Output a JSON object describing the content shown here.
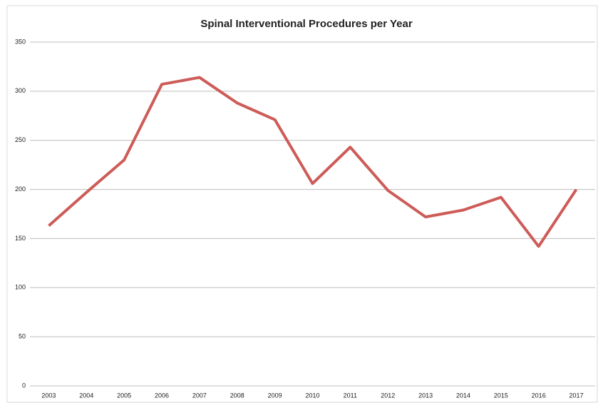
{
  "chart_data": {
    "type": "line",
    "title": "Spinal Interventional Procedures per Year",
    "categories": [
      "2003",
      "2004",
      "2005",
      "2006",
      "2007",
      "2008",
      "2009",
      "2010",
      "2011",
      "2012",
      "2013",
      "2014",
      "2015",
      "2016",
      "2017"
    ],
    "values": [
      163,
      197,
      230,
      307,
      314,
      288,
      271,
      206,
      243,
      199,
      172,
      179,
      192,
      142,
      200
    ],
    "color": "#cd5c58",
    "ylim": [
      0,
      350
    ],
    "yticks": [
      0,
      50,
      100,
      150,
      200,
      250,
      300,
      350
    ],
    "grid": true
  }
}
